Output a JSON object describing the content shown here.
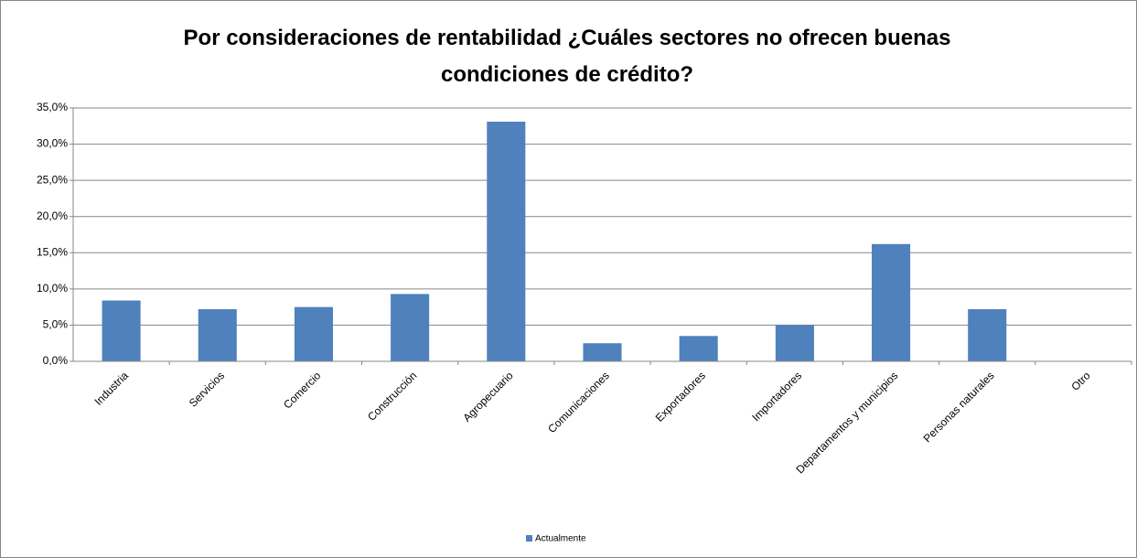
{
  "chart_data": {
    "type": "bar",
    "title": "Por consideraciones de rentabilidad ¿Cuáles sectores no ofrecen buenas condiciones de crédito?",
    "categories": [
      "Industria",
      "Servicios",
      "Comercio",
      "Construcción",
      "Agropecuario",
      "Comunicaciones",
      "Exportadores",
      "Importadores",
      "Departamentos y municipios",
      "Personas naturales",
      "Otro"
    ],
    "series": [
      {
        "name": "Actualmente",
        "color": "#4f81bd",
        "values": [
          8.4,
          7.2,
          7.5,
          9.3,
          33.1,
          2.5,
          3.5,
          5.0,
          16.2,
          7.2,
          0
        ]
      }
    ],
    "ylim": [
      0,
      35
    ],
    "yticks": [
      {
        "value": 0,
        "label": "0,0%"
      },
      {
        "value": 5,
        "label": "5,0%"
      },
      {
        "value": 10,
        "label": "10,0%"
      },
      {
        "value": 15,
        "label": "15,0%"
      },
      {
        "value": 20,
        "label": "20,0%"
      },
      {
        "value": 25,
        "label": "25,0%"
      },
      {
        "value": 30,
        "label": "30,0%"
      },
      {
        "value": 35,
        "label": "35,0%"
      }
    ],
    "grid": true,
    "legend": "bottom"
  }
}
